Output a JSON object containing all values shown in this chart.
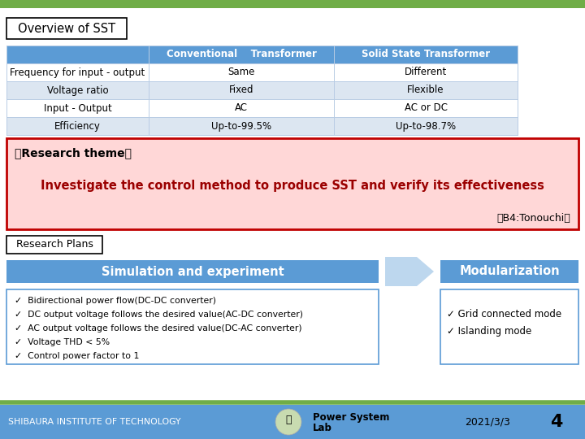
{
  "title": "Overview of SST",
  "table_header": [
    "",
    "Conventional    Transformer",
    "Solid State Transformer"
  ],
  "table_rows": [
    [
      "Frequency for input - output",
      "Same",
      "Different"
    ],
    [
      "Voltage ratio",
      "Fixed",
      "Flexible"
    ],
    [
      "Input - Output",
      "AC",
      "AC or DC"
    ],
    [
      "Efficiency",
      "Up-to-99.5%",
      "Up-to-98.7%"
    ]
  ],
  "research_theme_label": "【Research theme】",
  "research_theme_text": "Investigate the control method to produce SST and verify its effectiveness",
  "research_theme_credit": "（B4:Tonouchi）",
  "research_plans_label": "Research Plans",
  "sim_box_text": "Simulation and experiment",
  "mod_box_text": "Modularization",
  "bullet_items": [
    "Bidirectional power flow(DC-DC converter)",
    "DC output voltage follows the desired value(AC-DC converter)",
    "AC output voltage follows the desired value(DC-AC converter)",
    "Voltage THD < 5%",
    "Control power factor to 1"
  ],
  "mod_items": [
    "Grid connected mode",
    "Islanding mode"
  ],
  "footer_left": "SHIBAURA INSTITUTE OF TECHNOLOGY",
  "footer_center_line1": "Power System",
  "footer_center_line2": "Lab",
  "footer_right": "2021/3/3",
  "footer_page": "4",
  "top_bar_color": "#70ad47",
  "header_bar_color": "#5b9bd5",
  "header_text_color": "#ffffff",
  "alt_row_color": "#dce6f1",
  "white_row_color": "#ffffff",
  "row_border_color": "#b8cce4",
  "research_box_fill": "#ffd7d7",
  "research_box_edge": "#c00000",
  "research_text_color": "#9b0000",
  "research_label_color": "#000000",
  "sim_box_color": "#5b9bd5",
  "mod_box_color": "#5b9bd5",
  "plans_box_fill": "#ffffff",
  "plans_box_edge": "#5b9bd5",
  "footer_bar_color": "#5b9bd5",
  "footer_green_line": "#70ad47",
  "footer_text_color": "#000000",
  "bg_color": "#ffffff",
  "title_box_edge": "#000000",
  "plans_label_box_edge": "#000000",
  "arrow_color": "#bdd7ee"
}
